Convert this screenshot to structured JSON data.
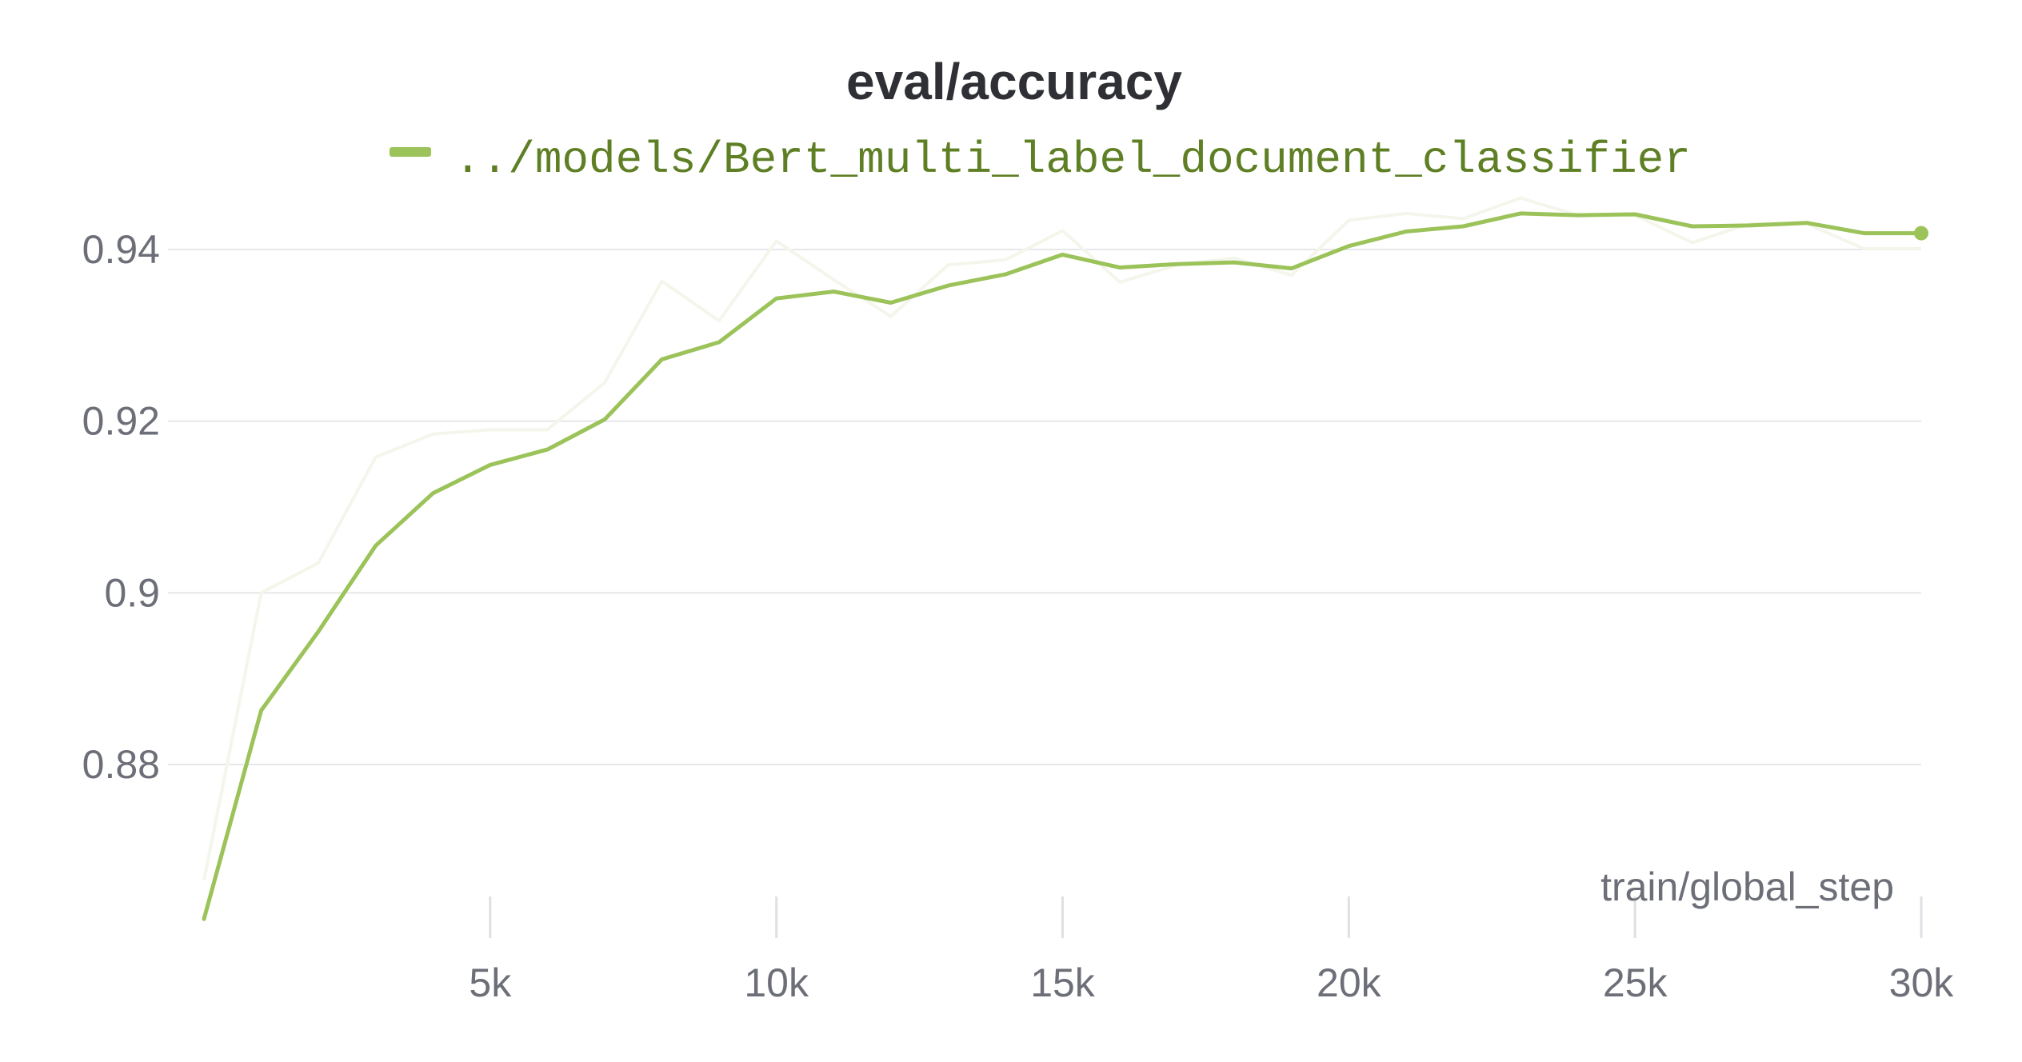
{
  "chart_data": {
    "type": "line",
    "title": "eval/accuracy",
    "xlabel": "train/global_step",
    "ylabel": "",
    "xlim": [
      0,
      30000
    ],
    "ylim": [
      0.8615,
      0.9535
    ],
    "grid": true,
    "legend_position": "top",
    "x_ticks": [
      {
        "value": 5000,
        "label": "5k"
      },
      {
        "value": 10000,
        "label": "10k"
      },
      {
        "value": 15000,
        "label": "15k"
      },
      {
        "value": 20000,
        "label": "20k"
      },
      {
        "value": 25000,
        "label": "25k"
      },
      {
        "value": 30000,
        "label": "30k"
      }
    ],
    "y_ticks": [
      {
        "value": 0.88,
        "label": "0.88"
      },
      {
        "value": 0.9,
        "label": "0.9"
      },
      {
        "value": 0.92,
        "label": "0.92"
      },
      {
        "value": 0.94,
        "label": "0.94"
      }
    ],
    "series": [
      {
        "name": "../models/Bert_multi_label_document_classifier",
        "color": "#9bc35a",
        "raw_color": "#f4f6ec",
        "x": [
          0,
          1000,
          2000,
          3000,
          4000,
          5000,
          6000,
          7000,
          8000,
          9000,
          10000,
          11000,
          12000,
          13000,
          14000,
          15000,
          16000,
          17000,
          18000,
          19000,
          20000,
          21000,
          22000,
          23000,
          24000,
          25000,
          26000,
          27000,
          28000,
          29000,
          30000
        ],
        "raw": [
          0.8665,
          0.9,
          0.9035,
          0.9158,
          0.9185,
          0.919,
          0.919,
          0.9245,
          0.9363,
          0.9317,
          0.941,
          0.9365,
          0.9322,
          0.9382,
          0.9388,
          0.9422,
          0.9362,
          0.9382,
          0.939,
          0.937,
          0.9434,
          0.9442,
          0.9436,
          0.946,
          0.944,
          0.944,
          0.9408,
          0.943,
          0.943,
          0.9401,
          0.9401
        ],
        "smoothed": [
          0.862,
          0.8863,
          0.8955,
          0.9055,
          0.9116,
          0.9149,
          0.9167,
          0.9202,
          0.9272,
          0.9292,
          0.9343,
          0.9351,
          0.9338,
          0.9358,
          0.9371,
          0.9394,
          0.9379,
          0.9383,
          0.9385,
          0.9378,
          0.9404,
          0.9421,
          0.9427,
          0.9442,
          0.944,
          0.9441,
          0.9427,
          0.9428,
          0.9431,
          0.9419,
          0.9419
        ]
      }
    ]
  }
}
